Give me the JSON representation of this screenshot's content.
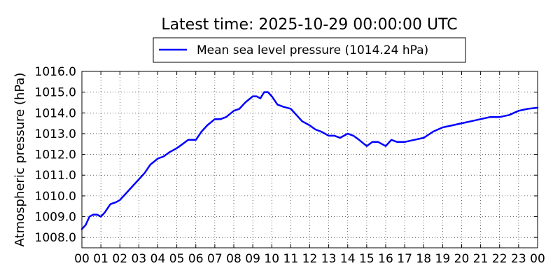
{
  "chart_data": {
    "type": "line",
    "title": "Latest time: 2025-10-29 00:00:00 UTC",
    "xlabel": "",
    "ylabel": "Atmospheric pressure (hPa)",
    "xlim": [
      0,
      24
    ],
    "ylim": [
      1007.5,
      1016.0
    ],
    "x_ticks": [
      0,
      1,
      2,
      3,
      4,
      5,
      6,
      7,
      8,
      9,
      10,
      11,
      12,
      13,
      14,
      15,
      16,
      17,
      18,
      19,
      20,
      21,
      22,
      23,
      24
    ],
    "x_tick_labels": [
      "00",
      "01",
      "02",
      "03",
      "04",
      "05",
      "06",
      "07",
      "08",
      "09",
      "10",
      "11",
      "12",
      "13",
      "14",
      "15",
      "16",
      "17",
      "18",
      "19",
      "20",
      "21",
      "22",
      "23",
      "00"
    ],
    "y_ticks": [
      1008.0,
      1009.0,
      1010.0,
      1011.0,
      1012.0,
      1013.0,
      1014.0,
      1015.0,
      1016.0
    ],
    "y_tick_labels": [
      "1008.0",
      "1009.0",
      "1010.0",
      "1011.0",
      "1012.0",
      "1013.0",
      "1014.0",
      "1015.0",
      "1016.0"
    ],
    "grid": true,
    "legend_position": "top-center",
    "legend": {
      "label": "Mean sea level pressure (1014.24 hPa)"
    },
    "series": [
      {
        "name": "Mean sea level pressure (1014.24 hPa)",
        "color": "#0000ff",
        "x": [
          0,
          0.2,
          0.4,
          0.6,
          0.8,
          1.0,
          1.2,
          1.5,
          1.8,
          2.0,
          2.2,
          2.5,
          2.8,
          3.0,
          3.3,
          3.6,
          4.0,
          4.3,
          4.6,
          5.0,
          5.3,
          5.6,
          6.0,
          6.3,
          6.6,
          7.0,
          7.3,
          7.6,
          8.0,
          8.3,
          8.6,
          9.0,
          9.2,
          9.4,
          9.6,
          9.8,
          10.0,
          10.3,
          10.6,
          11.0,
          11.3,
          11.6,
          12.0,
          12.3,
          12.6,
          13.0,
          13.3,
          13.6,
          14.0,
          14.3,
          14.6,
          15.0,
          15.3,
          15.6,
          16.0,
          16.3,
          16.6,
          17.0,
          17.5,
          18.0,
          18.5,
          19.0,
          19.5,
          20.0,
          20.5,
          21.0,
          21.5,
          22.0,
          22.5,
          23.0,
          23.5,
          24.0
        ],
        "y": [
          1008.4,
          1008.6,
          1009.0,
          1009.1,
          1009.1,
          1009.0,
          1009.2,
          1009.6,
          1009.7,
          1009.8,
          1010.0,
          1010.3,
          1010.6,
          1010.8,
          1011.1,
          1011.5,
          1011.8,
          1011.9,
          1012.1,
          1012.3,
          1012.5,
          1012.7,
          1012.7,
          1013.1,
          1013.4,
          1013.7,
          1013.7,
          1013.8,
          1014.1,
          1014.2,
          1014.5,
          1014.8,
          1014.8,
          1014.7,
          1015.0,
          1015.0,
          1014.8,
          1014.4,
          1014.3,
          1014.2,
          1013.9,
          1013.6,
          1013.4,
          1013.2,
          1013.1,
          1012.9,
          1012.9,
          1012.8,
          1013.0,
          1012.9,
          1012.7,
          1012.4,
          1012.6,
          1012.6,
          1012.4,
          1012.7,
          1012.6,
          1012.6,
          1012.7,
          1012.8,
          1013.1,
          1013.3,
          1013.4,
          1013.5,
          1013.6,
          1013.7,
          1013.8,
          1013.8,
          1013.9,
          1014.1,
          1014.2,
          1014.25
        ]
      }
    ]
  }
}
